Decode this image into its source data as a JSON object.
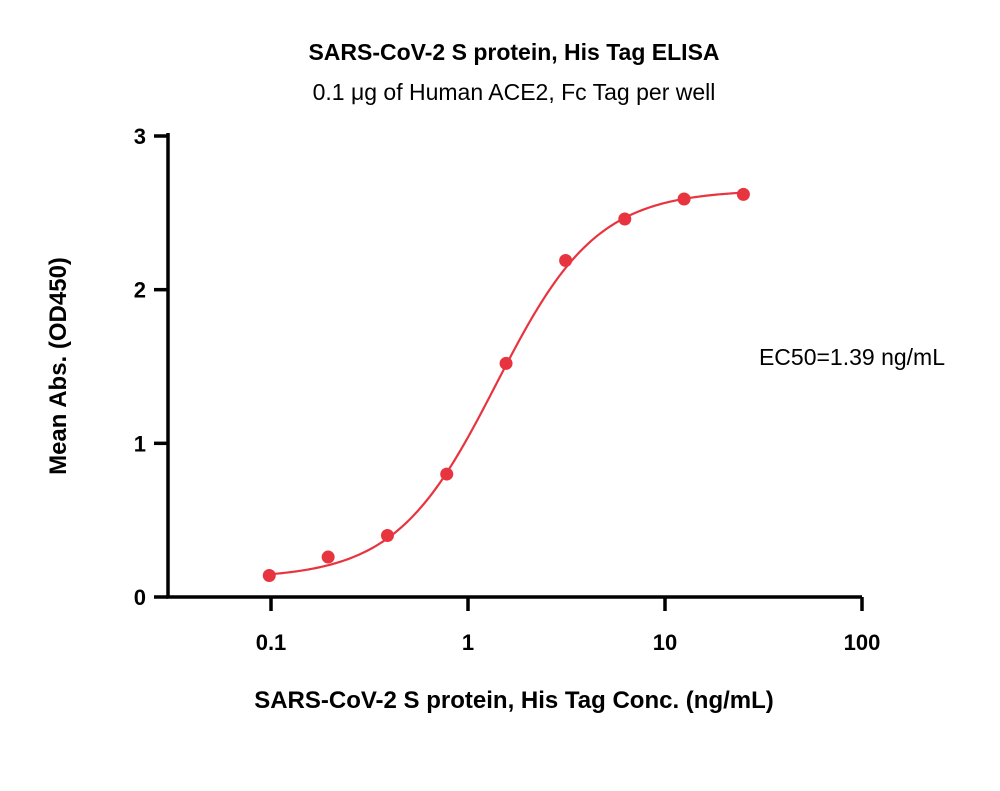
{
  "chart_data": {
    "type": "scatter",
    "title": "SARS-CoV-2 S protein, His Tag ELISA",
    "subtitle": "0.1 μg of Human ACE2, Fc Tag per well",
    "xlabel": "SARS-CoV-2 S protein, His Tag Conc. (ng/mL)",
    "ylabel": "Mean Abs. (OD450)",
    "x_scale": "log",
    "xlim": [
      0.03,
      100
    ],
    "ylim": [
      0,
      3
    ],
    "x_ticks": [
      0.1,
      1,
      10,
      100
    ],
    "x_tick_labels": [
      "0.1",
      "1",
      "10",
      "100"
    ],
    "y_ticks": [
      0,
      1,
      2,
      3
    ],
    "y_tick_labels": [
      "0",
      "1",
      "2",
      "3"
    ],
    "grid": false,
    "series": [
      {
        "x": [
          0.098,
          0.195,
          0.39,
          0.78,
          1.56,
          3.13,
          6.25,
          12.5,
          25
        ],
        "y": [
          0.14,
          0.26,
          0.4,
          0.8,
          1.52,
          2.19,
          2.46,
          2.59,
          2.62
        ],
        "color": "#e8343f",
        "fit": "4PL sigmoid"
      }
    ],
    "annotation": "EC50=1.39 ng/mL"
  }
}
